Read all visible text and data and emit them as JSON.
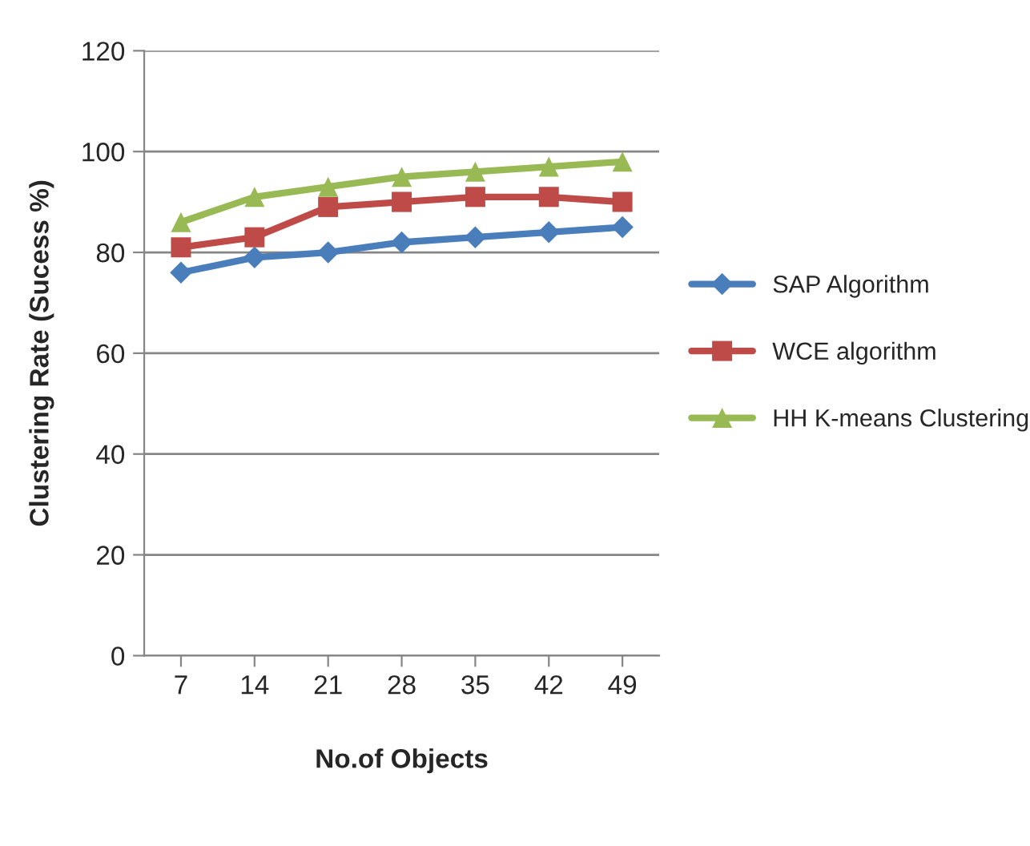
{
  "chart_data": {
    "type": "line",
    "xlabel": "No.of Objects",
    "ylabel": "Clustering Rate (Sucess %)",
    "categories": [
      "7",
      "14",
      "21",
      "28",
      "35",
      "42",
      "49"
    ],
    "series": [
      {
        "name": "SAP Algorithm",
        "color": "#4a7ebb",
        "marker": "diamond",
        "values": [
          76,
          79,
          80,
          82,
          83,
          84,
          85
        ]
      },
      {
        "name": "WCE algorithm",
        "color": "#be4b48",
        "marker": "square",
        "values": [
          81,
          83,
          89,
          90,
          91,
          91,
          90
        ]
      },
      {
        "name": "HH K-means Clustering",
        "color": "#98b954",
        "marker": "triangle",
        "values": [
          86,
          91,
          93,
          95,
          96,
          97,
          98
        ]
      }
    ],
    "ylim": [
      0,
      120
    ],
    "yticks": [
      0,
      20,
      40,
      60,
      80,
      100,
      120
    ],
    "grid": "y",
    "legend": "right",
    "line_style": "solid"
  }
}
